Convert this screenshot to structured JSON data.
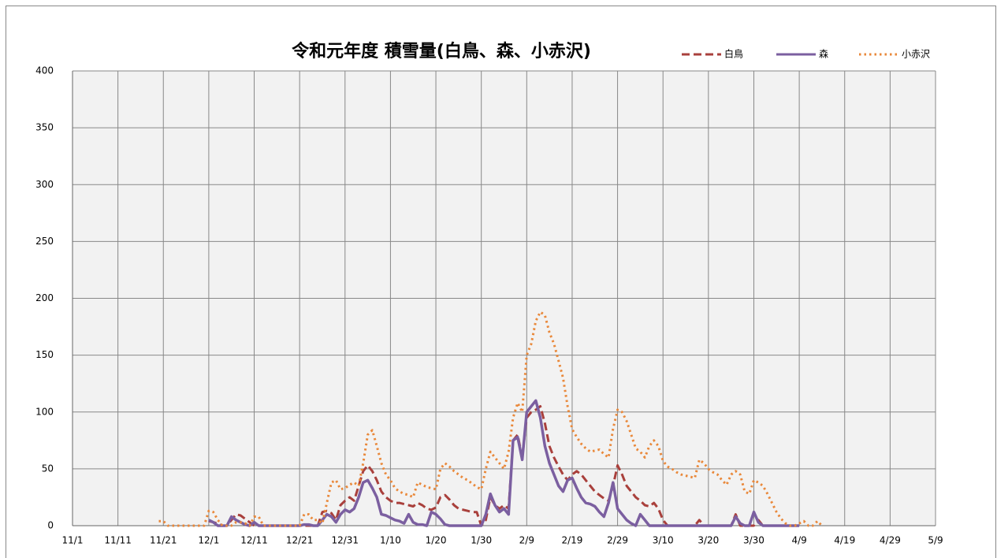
{
  "chart_data": {
    "type": "line",
    "title": "令和元年度 積雪量(白鳥、森、小赤沢)",
    "x": [
      19,
      20,
      21,
      22,
      23,
      24,
      25,
      26,
      27,
      28,
      29,
      30,
      31,
      32,
      33,
      34,
      35,
      36,
      37,
      38,
      39,
      40,
      41,
      42,
      43,
      44,
      45,
      46,
      47,
      48,
      49,
      50,
      51,
      52,
      53,
      54,
      55,
      56,
      57,
      58,
      59,
      60,
      61,
      62,
      63,
      64,
      65,
      66,
      67,
      68,
      69,
      70,
      71,
      72,
      73,
      74,
      75,
      76,
      77,
      78,
      79,
      80,
      81,
      82,
      83,
      84,
      85,
      86,
      87,
      88,
      89,
      90,
      91,
      92,
      93,
      94,
      95,
      96,
      97,
      98,
      99,
      100,
      101,
      102,
      103,
      104,
      105,
      106,
      107,
      108,
      109,
      110,
      111,
      112,
      113,
      114,
      115,
      116,
      117,
      118,
      119,
      120,
      121,
      122,
      123,
      124,
      125,
      126,
      127,
      128,
      129,
      130,
      131,
      132,
      133,
      134,
      135,
      136,
      137,
      138,
      139,
      140,
      141,
      142,
      143,
      144,
      145,
      146,
      147,
      148,
      149,
      150,
      151,
      152,
      153,
      154,
      155,
      156,
      157,
      158,
      159,
      160,
      161,
      162,
      163,
      164,
      165
    ],
    "series": [
      {
        "name": "白鳥",
        "color": "#a9403c",
        "dash": "dashed",
        "values": [
          null,
          null,
          null,
          null,
          null,
          null,
          null,
          null,
          null,
          null,
          null,
          4,
          3,
          2,
          0,
          0,
          5,
          10,
          9,
          6,
          3,
          0,
          0,
          0,
          0,
          0,
          0,
          0,
          0,
          0,
          0,
          0,
          0,
          0,
          0,
          0,
          12,
          13,
          11,
          5,
          18,
          22,
          25,
          22,
          35,
          48,
          53,
          48,
          40,
          30,
          25,
          22,
          20,
          20,
          19,
          18,
          17,
          20,
          18,
          15,
          14,
          16,
          25,
          27,
          23,
          18,
          15,
          14,
          13,
          12,
          12,
          0,
          5,
          25,
          18,
          15,
          18,
          15,
          75,
          80,
          60,
          95,
          100,
          102,
          105,
          90,
          70,
          60,
          52,
          45,
          40,
          45,
          48,
          45,
          40,
          35,
          30,
          27,
          24,
          22,
          35,
          53,
          45,
          35,
          30,
          25,
          22,
          18,
          17,
          20,
          15,
          5,
          0,
          0,
          0,
          0,
          0,
          0,
          0,
          5,
          0,
          0,
          0,
          0,
          0,
          0,
          0,
          10,
          0,
          0,
          0,
          0,
          5,
          0,
          null,
          null,
          null,
          null,
          null,
          null,
          null,
          null,
          null,
          null,
          null,
          null,
          null
        ]
      },
      {
        "name": "森",
        "color": "#7b5fa0",
        "dash": "solid",
        "values": [
          null,
          null,
          null,
          null,
          null,
          null,
          null,
          null,
          null,
          null,
          null,
          5,
          3,
          0,
          0,
          0,
          8,
          5,
          3,
          1,
          0,
          3,
          0,
          0,
          0,
          0,
          0,
          0,
          0,
          0,
          0,
          0,
          1,
          1,
          0,
          0,
          5,
          10,
          8,
          3,
          10,
          14,
          12,
          15,
          25,
          38,
          40,
          33,
          25,
          10,
          9,
          7,
          5,
          4,
          2,
          10,
          3,
          1,
          1,
          0,
          12,
          10,
          6,
          1,
          0,
          0,
          0,
          0,
          0,
          0,
          0,
          0,
          10,
          28,
          18,
          12,
          15,
          10,
          75,
          78,
          58,
          100,
          105,
          110,
          95,
          70,
          55,
          45,
          35,
          30,
          40,
          42,
          33,
          25,
          20,
          19,
          17,
          12,
          8,
          20,
          38,
          15,
          10,
          5,
          2,
          0,
          10,
          5,
          0,
          0,
          0,
          0,
          0,
          0,
          0,
          0,
          0,
          0,
          0,
          0,
          0,
          0,
          0,
          0,
          0,
          0,
          0,
          8,
          2,
          0,
          0,
          12,
          3,
          0,
          0,
          0,
          0,
          0,
          0,
          0,
          0,
          0,
          null,
          null,
          null,
          null,
          null
        ]
      },
      {
        "name": "小赤沢",
        "color": "#e9883a",
        "dash": "dotted",
        "values": [
          4,
          4,
          0,
          0,
          0,
          0,
          0,
          0,
          0,
          0,
          0,
          13,
          12,
          5,
          0,
          0,
          0,
          3,
          3,
          2,
          0,
          8,
          8,
          0,
          0,
          0,
          0,
          0,
          0,
          0,
          0,
          0,
          10,
          10,
          5,
          5,
          2,
          20,
          38,
          40,
          32,
          33,
          36,
          38,
          35,
          55,
          80,
          84,
          70,
          55,
          45,
          40,
          33,
          30,
          28,
          27,
          25,
          38,
          36,
          34,
          33,
          32,
          50,
          55,
          52,
          48,
          45,
          42,
          40,
          37,
          34,
          32,
          50,
          65,
          60,
          55,
          50,
          65,
          95,
          108,
          100,
          150,
          160,
          180,
          188,
          185,
          170,
          160,
          145,
          130,
          105,
          85,
          78,
          72,
          68,
          65,
          66,
          67,
          63,
          60,
          85,
          102,
          100,
          92,
          80,
          68,
          65,
          60,
          70,
          75,
          70,
          57,
          52,
          50,
          47,
          45,
          44,
          43,
          42,
          58,
          55,
          50,
          47,
          45,
          40,
          36,
          45,
          48,
          45,
          30,
          28,
          40,
          38,
          35,
          28,
          20,
          12,
          6,
          2,
          0,
          0,
          2,
          4,
          0,
          0,
          4,
          0
        ]
      }
    ],
    "xlim": [
      0,
      190
    ],
    "xticks": [
      {
        "value": 0,
        "label": "11/1"
      },
      {
        "value": 10,
        "label": "11/11"
      },
      {
        "value": 20,
        "label": "11/21"
      },
      {
        "value": 30,
        "label": "12/1"
      },
      {
        "value": 40,
        "label": "12/11"
      },
      {
        "value": 50,
        "label": "12/21"
      },
      {
        "value": 60,
        "label": "12/31"
      },
      {
        "value": 70,
        "label": "1/10"
      },
      {
        "value": 80,
        "label": "1/20"
      },
      {
        "value": 90,
        "label": "1/30"
      },
      {
        "value": 100,
        "label": "2/9"
      },
      {
        "value": 110,
        "label": "2/19"
      },
      {
        "value": 120,
        "label": "2/29"
      },
      {
        "value": 130,
        "label": "3/10"
      },
      {
        "value": 140,
        "label": "3/20"
      },
      {
        "value": 150,
        "label": "3/30"
      },
      {
        "value": 160,
        "label": "4/9"
      },
      {
        "value": 170,
        "label": "4/19"
      },
      {
        "value": 180,
        "label": "4/29"
      },
      {
        "value": 190,
        "label": "5/9"
      }
    ],
    "ylim": [
      0,
      400
    ],
    "yticks": [
      0,
      50,
      100,
      150,
      200,
      250,
      300,
      350,
      400
    ],
    "grid": true,
    "legend": "top-right"
  }
}
